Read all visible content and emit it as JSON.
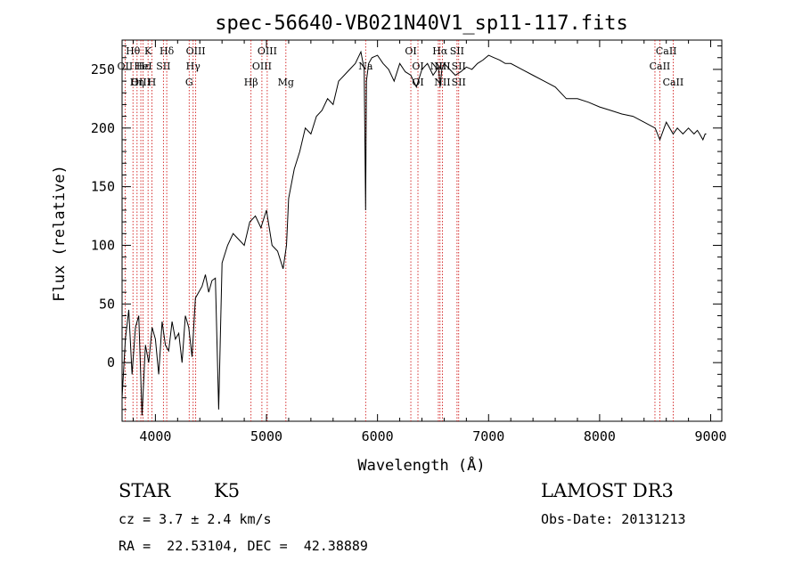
{
  "chart_data": {
    "type": "line",
    "title": "spec-56640-VB021N40V1_sp11-117.fits",
    "xlabel": "Wavelength (Å)",
    "ylabel": "Flux (relative)",
    "xlim": [
      3700,
      9100
    ],
    "ylim": [
      -50,
      275
    ],
    "xticks": [
      4000,
      5000,
      6000,
      7000,
      8000,
      9000
    ],
    "yticks": [
      0,
      50,
      100,
      150,
      200,
      250
    ],
    "grid": false,
    "series": [
      {
        "name": "spectrum",
        "x": [
          3700,
          3730,
          3760,
          3790,
          3820,
          3850,
          3880,
          3910,
          3940,
          3970,
          4000,
          4030,
          4060,
          4090,
          4120,
          4150,
          4180,
          4210,
          4240,
          4270,
          4300,
          4330,
          4360,
          4390,
          4420,
          4450,
          4480,
          4510,
          4540,
          4570,
          4600,
          4650,
          4700,
          4750,
          4800,
          4850,
          4900,
          4950,
          5000,
          5050,
          5100,
          5150,
          5180,
          5200,
          5250,
          5300,
          5350,
          5400,
          5450,
          5500,
          5550,
          5600,
          5650,
          5700,
          5750,
          5800,
          5850,
          5880,
          5893,
          5900,
          5920,
          5950,
          6000,
          6050,
          6100,
          6150,
          6200,
          6250,
          6300,
          6350,
          6400,
          6450,
          6500,
          6550,
          6563,
          6580,
          6600,
          6650,
          6700,
          6750,
          6800,
          6850,
          6900,
          6950,
          7000,
          7050,
          7100,
          7150,
          7200,
          7300,
          7400,
          7500,
          7600,
          7700,
          7800,
          7900,
          8000,
          8100,
          8200,
          8300,
          8400,
          8500,
          8542,
          8600,
          8662,
          8700,
          8750,
          8800,
          8850,
          8880,
          8900,
          8930,
          8950,
          8960
        ],
        "values": [
          -30,
          20,
          45,
          -10,
          30,
          40,
          -45,
          15,
          0,
          30,
          20,
          -10,
          35,
          15,
          10,
          35,
          20,
          25,
          0,
          40,
          30,
          5,
          55,
          60,
          65,
          75,
          60,
          70,
          72,
          -40,
          85,
          100,
          110,
          105,
          100,
          120,
          125,
          115,
          130,
          100,
          95,
          80,
          100,
          140,
          165,
          180,
          200,
          195,
          210,
          215,
          225,
          220,
          240,
          245,
          250,
          255,
          265,
          250,
          130,
          240,
          255,
          260,
          262,
          255,
          250,
          240,
          255,
          248,
          245,
          235,
          250,
          255,
          245,
          252,
          235,
          250,
          255,
          250,
          245,
          248,
          252,
          250,
          255,
          258,
          262,
          260,
          258,
          255,
          255,
          250,
          245,
          240,
          235,
          225,
          225,
          222,
          218,
          215,
          212,
          210,
          205,
          200,
          190,
          205,
          195,
          200,
          195,
          200,
          195,
          198,
          195,
          190,
          195,
          195
        ]
      }
    ],
    "line_labels": [
      {
        "name": "Hθ",
        "x": 3798,
        "row": 1
      },
      {
        "name": "K",
        "x": 3934,
        "row": 1
      },
      {
        "name": "Hδ",
        "x": 4102,
        "row": 1
      },
      {
        "name": "OIII",
        "x": 4363,
        "row": 1
      },
      {
        "name": "OIII",
        "x": 5007,
        "row": 1
      },
      {
        "name": "OI",
        "x": 6300,
        "row": 1
      },
      {
        "name": "Hα",
        "x": 6563,
        "row": 1
      },
      {
        "name": "SII",
        "x": 6716,
        "row": 1
      },
      {
        "name": "CaII",
        "x": 8600,
        "row": 1
      },
      {
        "name": "OII",
        "x": 3727,
        "row": 2
      },
      {
        "name": "Hε",
        "x": 3889,
        "row": 2
      },
      {
        "name": "HeI",
        "x": 3889,
        "row": 2
      },
      {
        "name": "SII",
        "x": 4072,
        "row": 2
      },
      {
        "name": "Hγ",
        "x": 4340,
        "row": 2
      },
      {
        "name": "OIII",
        "x": 4959,
        "row": 2
      },
      {
        "name": "Na",
        "x": 5893,
        "row": 2
      },
      {
        "name": "OI",
        "x": 6364,
        "row": 2
      },
      {
        "name": "NII",
        "x": 6584,
        "row": 2
      },
      {
        "name": "SII",
        "x": 6731,
        "row": 2
      },
      {
        "name": "NII",
        "x": 6548,
        "row": 2
      },
      {
        "name": "CaII",
        "x": 8542,
        "row": 2
      },
      {
        "name": "OIII",
        "x": 3869,
        "row": 3
      },
      {
        "name": "Hη",
        "x": 3835,
        "row": 3
      },
      {
        "name": "H",
        "x": 3968,
        "row": 3
      },
      {
        "name": "G",
        "x": 4304,
        "row": 3
      },
      {
        "name": "Hβ",
        "x": 4861,
        "row": 3
      },
      {
        "name": "Mg",
        "x": 5175,
        "row": 3
      },
      {
        "name": "OI",
        "x": 6364,
        "row": 3
      },
      {
        "name": "NII",
        "x": 6584,
        "row": 3
      },
      {
        "name": "SII",
        "x": 6731,
        "row": 3
      },
      {
        "name": "CaII",
        "x": 8662,
        "row": 3
      }
    ],
    "line_positions": [
      3727,
      3798,
      3835,
      3869,
      3889,
      3934,
      3968,
      4072,
      4102,
      4304,
      4340,
      4363,
      4861,
      4959,
      5007,
      5175,
      5893,
      6300,
      6364,
      6548,
      6563,
      6584,
      6716,
      6731,
      8498,
      8542,
      8662
    ]
  },
  "info": {
    "object_class": "STAR",
    "subclass": "K5",
    "survey": "LAMOST DR3",
    "cz": "cz = 3.7 ± 2.4 km/s",
    "obs_date": "Obs-Date: 20131213",
    "coords": "RA =  22.53104, DEC =  42.38889"
  },
  "colors": {
    "spectrum": "#000000",
    "line_marker": "#cc0000",
    "axes": "#000000"
  }
}
